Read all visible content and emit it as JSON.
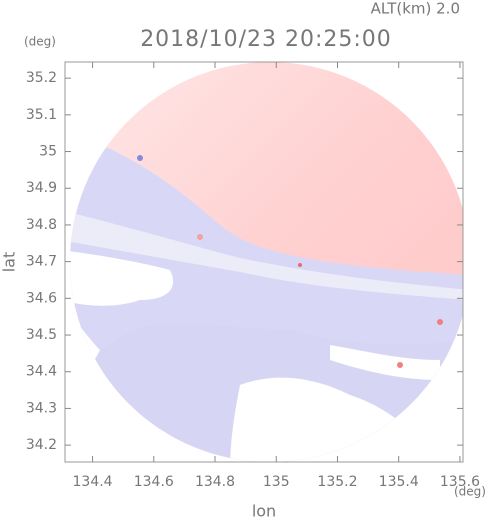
{
  "chart_data": {
    "type": "radar-map",
    "title": "2018/10/23 20:25:00",
    "annotation": "ALT(km) 2.0",
    "y_unit": "(deg)",
    "x_unit": "(deg)",
    "x_label": "lon",
    "y_label": "lat",
    "xlim": [
      134.31,
      135.61
    ],
    "xticks": [
      134.4,
      134.6,
      134.8,
      135.0,
      135.2,
      135.4,
      135.6
    ],
    "ylim": [
      34.154,
      35.244
    ],
    "yticks": [
      34.2,
      34.3,
      34.4,
      34.5,
      34.6,
      34.7,
      34.8,
      34.9,
      35.0,
      35.1,
      35.2
    ]
  }
}
